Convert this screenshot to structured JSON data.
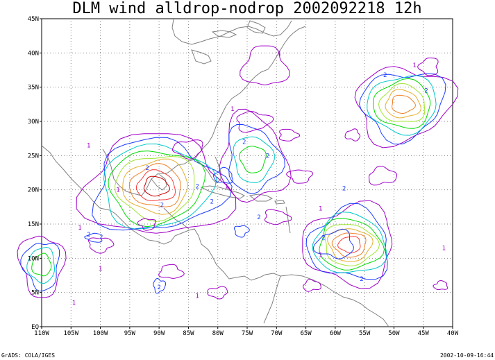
{
  "title": "DLM wind alldrop-nodrop 2002092218 12h",
  "footer_left": "GrADS: COLA/IGES",
  "footer_right": "2002-10-09-16:44",
  "map": {
    "lon_range": [
      -110,
      -40
    ],
    "lat_range": [
      0,
      45
    ],
    "x_ticks": [
      "110W",
      "105W",
      "100W",
      "95W",
      "90W",
      "85W",
      "80W",
      "75W",
      "70W",
      "65W",
      "60W",
      "55W",
      "50W",
      "45W",
      "40W"
    ],
    "y_ticks": [
      "EQ",
      "5N",
      "10N",
      "15N",
      "20N",
      "25N",
      "30N",
      "35N",
      "40N",
      "45N"
    ],
    "grid": true,
    "coastline_color": "#808080"
  },
  "contour_colors": {
    "1": "#a000c8",
    "2": "#1e3cff",
    "3": "#00c8c8",
    "4": "#00dc00",
    "5": "#a0e632",
    "6": "#e6af2d",
    "7": "#f08228",
    "8": "#fa3c3c",
    "9": "#c80000"
  },
  "contour_labels": [
    {
      "text": "1",
      "lon": -69.5,
      "lat": 40.0,
      "level": 1
    },
    {
      "text": "1",
      "lon": -46.5,
      "lat": 38.2,
      "level": 1
    },
    {
      "text": "2",
      "lon": -51.5,
      "lat": 36.8,
      "level": 2
    },
    {
      "text": "2",
      "lon": -44.5,
      "lat": 34.5,
      "level": 2
    },
    {
      "text": "1",
      "lon": -77.5,
      "lat": 31.8,
      "level": 1
    },
    {
      "text": "1",
      "lon": -102.0,
      "lat": 26.5,
      "level": 1
    },
    {
      "text": "2",
      "lon": -92.0,
      "lat": 23.2,
      "level": 2
    },
    {
      "text": "2",
      "lon": -75.5,
      "lat": 27.0,
      "level": 2
    },
    {
      "text": "2",
      "lon": -71.5,
      "lat": 25.0,
      "level": 2
    },
    {
      "text": "1",
      "lon": -97.0,
      "lat": 20.0,
      "level": 1
    },
    {
      "text": "1",
      "lon": -78.5,
      "lat": 20.5,
      "level": 1
    },
    {
      "text": "2",
      "lon": -83.5,
      "lat": 20.5,
      "level": 2
    },
    {
      "text": "2",
      "lon": -81.0,
      "lat": 18.3,
      "level": 2
    },
    {
      "text": "2",
      "lon": -89.5,
      "lat": 17.8,
      "level": 2
    },
    {
      "text": "2",
      "lon": -58.5,
      "lat": 20.2,
      "level": 2
    },
    {
      "text": "1",
      "lon": -62.5,
      "lat": 17.3,
      "level": 1
    },
    {
      "text": "2",
      "lon": -73.0,
      "lat": 16.0,
      "level": 2
    },
    {
      "text": "1",
      "lon": -103.5,
      "lat": 14.5,
      "level": 1
    },
    {
      "text": "2",
      "lon": -102.0,
      "lat": 13.5,
      "level": 2
    },
    {
      "text": "2",
      "lon": -62.0,
      "lat": 13.0,
      "level": 2
    },
    {
      "text": "1",
      "lon": -62.5,
      "lat": 10.5,
      "level": 1
    },
    {
      "text": "1",
      "lon": -100.0,
      "lat": 8.5,
      "level": 1
    },
    {
      "text": "2",
      "lon": -90.0,
      "lat": 5.8,
      "level": 2
    },
    {
      "text": "2",
      "lon": -55.5,
      "lat": 7.0,
      "level": 2
    },
    {
      "text": "1",
      "lon": -83.5,
      "lat": 4.5,
      "level": 1
    },
    {
      "text": "1",
      "lon": -104.5,
      "lat": 3.5,
      "level": 1
    },
    {
      "text": "1",
      "lon": -41.5,
      "lat": 11.5,
      "level": 1
    }
  ],
  "vortices": [
    {
      "name": "vortex-gulf-of-mexico",
      "lon": -90.5,
      "lat": 20.5,
      "levels": [
        1,
        2,
        3,
        4,
        5,
        6,
        7,
        8,
        9
      ]
    },
    {
      "name": "vortex-north-atlantic",
      "lon": -48.5,
      "lat": 32.5,
      "levels": [
        1,
        2,
        3,
        4,
        5,
        6,
        7
      ]
    },
    {
      "name": "vortex-tropical-atlantic",
      "lon": -57.5,
      "lat": 12.0,
      "levels": [
        1,
        2,
        3,
        4,
        5,
        6,
        7,
        8
      ]
    },
    {
      "name": "vortex-bahamas",
      "lon": -74.0,
      "lat": 24.5,
      "levels": [
        1,
        2,
        3,
        4
      ]
    },
    {
      "name": "vortex-pacific-edge",
      "lon": -110.0,
      "lat": 9.0,
      "levels": [
        1,
        2,
        3,
        4
      ]
    }
  ]
}
